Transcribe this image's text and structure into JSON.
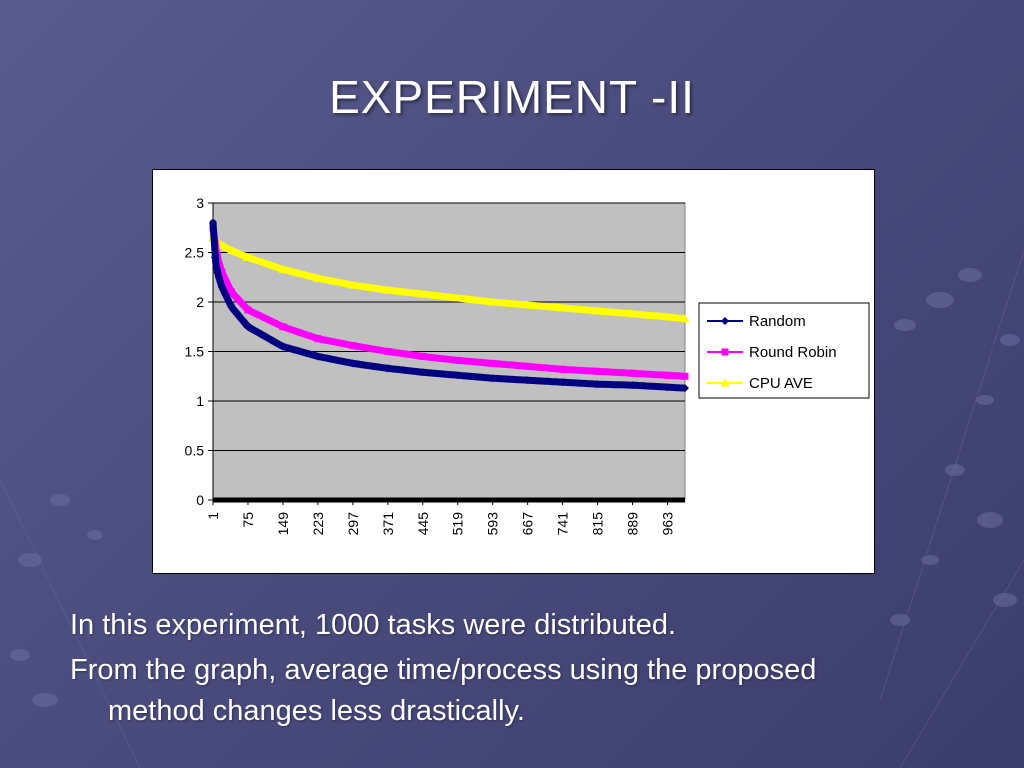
{
  "slide": {
    "title": "EXPERIMENT -II",
    "bullets": [
      "In this experiment, 1000 tasks were distributed.",
      "From the graph, average time/process using the proposed",
      "method changes less drastically."
    ]
  },
  "colors": {
    "background": "#4a4c7e",
    "plot_area": "#c0c0c0",
    "random": "#000080",
    "round_robin": "#ff00ff",
    "cpu_ave": "#ffff00"
  },
  "chart_data": {
    "type": "line",
    "ylim": [
      0,
      3
    ],
    "y_ticks": [
      "0",
      "0.5",
      "1",
      "1.5",
      "2",
      "2.5",
      "3"
    ],
    "x_tick_labels": [
      "1",
      "75",
      "149",
      "223",
      "297",
      "371",
      "445",
      "519",
      "593",
      "667",
      "741",
      "815",
      "889",
      "963"
    ],
    "x_range": [
      1,
      1000
    ],
    "grid": true,
    "legend_position": "right",
    "series": [
      {
        "name": "Random",
        "marker": "diamond",
        "x": [
          1,
          5,
          10,
          20,
          40,
          75,
          149,
          223,
          297,
          371,
          445,
          519,
          593,
          667,
          741,
          815,
          889,
          963,
          1000
        ],
        "values": [
          2.8,
          2.45,
          2.3,
          2.15,
          1.95,
          1.75,
          1.55,
          1.45,
          1.38,
          1.33,
          1.29,
          1.26,
          1.23,
          1.21,
          1.19,
          1.17,
          1.16,
          1.14,
          1.13
        ]
      },
      {
        "name": "Round Robin",
        "marker": "square",
        "x": [
          1,
          5,
          10,
          20,
          40,
          75,
          149,
          223,
          297,
          371,
          445,
          519,
          593,
          667,
          741,
          815,
          889,
          963,
          1000
        ],
        "values": [
          2.75,
          2.6,
          2.45,
          2.3,
          2.1,
          1.92,
          1.75,
          1.63,
          1.56,
          1.5,
          1.45,
          1.41,
          1.38,
          1.35,
          1.32,
          1.3,
          1.28,
          1.26,
          1.25
        ]
      },
      {
        "name": "CPU AVE",
        "marker": "triangle",
        "x": [
          1,
          5,
          10,
          20,
          40,
          75,
          149,
          223,
          297,
          371,
          445,
          519,
          593,
          667,
          741,
          815,
          889,
          963,
          1000
        ],
        "values": [
          2.65,
          2.63,
          2.6,
          2.57,
          2.52,
          2.45,
          2.33,
          2.24,
          2.17,
          2.12,
          2.08,
          2.04,
          2.0,
          1.97,
          1.94,
          1.91,
          1.88,
          1.85,
          1.83
        ]
      }
    ]
  }
}
